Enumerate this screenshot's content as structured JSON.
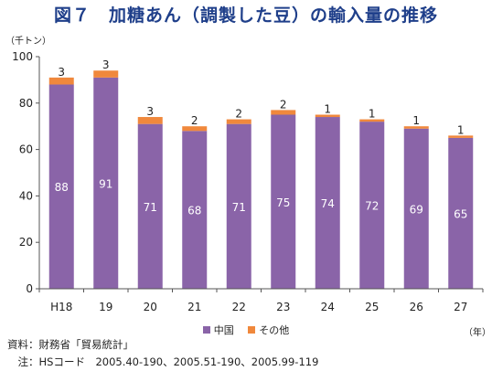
{
  "title": "図７　加糖あん（調製した豆）の輸入量の推移",
  "y_unit": "（千トン）",
  "x_unit": "（年）",
  "source": "資料：財務省「貿易統計」",
  "note": "　注：HSコード　2005.40-190、2005.51-190、2005.99-119",
  "colors": {
    "china": "#8a64a8",
    "other": "#f0883c"
  },
  "chart_data": {
    "type": "bar",
    "stacked": true,
    "categories": [
      "H18",
      "19",
      "20",
      "21",
      "22",
      "23",
      "24",
      "25",
      "26",
      "27"
    ],
    "series": [
      {
        "name": "中国",
        "values": [
          88,
          91,
          71,
          68,
          71,
          75,
          74,
          72,
          69,
          65
        ]
      },
      {
        "name": "その他",
        "values": [
          3,
          3,
          3,
          2,
          2,
          2,
          1,
          1,
          1,
          1
        ]
      }
    ],
    "ylim": [
      0,
      100
    ],
    "yticks": [
      0,
      20,
      40,
      60,
      80,
      100
    ],
    "grid": false,
    "legend": "bottom"
  }
}
